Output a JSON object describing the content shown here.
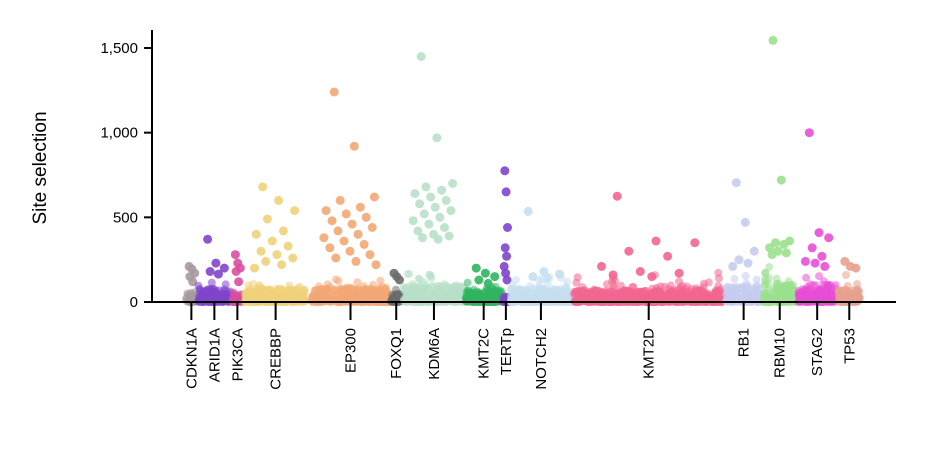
{
  "chart_data": {
    "type": "scatter",
    "ylabel": "Site selection",
    "ylim": [
      0,
      1600
    ],
    "yticks": [
      0,
      500,
      1000,
      1500
    ],
    "ytick_labels": [
      "0",
      "500",
      "1,000",
      "1,500"
    ],
    "grid": false,
    "categories": [
      {
        "name": "CDKN1A",
        "color": "#a79a9e",
        "range": [
          0.15,
          0.35
        ],
        "bulk": 60,
        "peak": 150,
        "outliers": [
          210,
          195,
          170,
          150,
          120
        ]
      },
      {
        "name": "ARID1A",
        "color": "#7f45cc",
        "range": [
          0.38,
          0.98
        ],
        "bulk": 80,
        "peak": 150,
        "outliers": [
          370,
          230,
          200,
          180,
          165
        ]
      },
      {
        "name": "PIK3CA",
        "color": "#d94fa0",
        "range": [
          1.02,
          1.2
        ],
        "bulk": 60,
        "peak": 120,
        "outliers": [
          280,
          230,
          200,
          180,
          120
        ]
      },
      {
        "name": "CREBBP",
        "color": "#eed27a",
        "range": [
          1.25,
          2.4
        ],
        "bulk": 80,
        "peak": 140,
        "outliers": [
          680,
          600,
          540,
          490,
          420,
          400,
          360,
          330,
          300,
          280,
          260,
          240,
          220,
          200
        ]
      },
      {
        "name": "EP300",
        "color": "#f2a874",
        "range": [
          2.5,
          3.95
        ],
        "bulk": 80,
        "peak": 150,
        "outliers": [
          1240,
          920,
          620,
          600,
          560,
          540,
          520,
          500,
          480,
          460,
          440,
          420,
          400,
          380,
          360,
          340,
          320,
          300,
          280,
          260,
          240,
          220
        ]
      },
      {
        "name": "FOXQ1",
        "color": "#6b6b6b",
        "range": [
          3.98,
          4.18
        ],
        "bulk": 50,
        "peak": 120,
        "outliers": [
          170,
          150,
          130
        ]
      },
      {
        "name": "KDM6A",
        "color": "#b8e0c8",
        "range": [
          4.22,
          5.35
        ],
        "bulk": 100,
        "peak": 200,
        "outliers": [
          1450,
          970,
          700,
          680,
          660,
          640,
          620,
          600,
          580,
          560,
          540,
          520,
          500,
          480,
          460,
          440,
          420,
          400,
          390,
          380,
          370
        ]
      },
      {
        "name": "KMT2C",
        "color": "#2fb561",
        "range": [
          5.38,
          6.05
        ],
        "bulk": 70,
        "peak": 140,
        "outliers": [
          200,
          170,
          150,
          130,
          110
        ]
      },
      {
        "name": "TERTp",
        "color": "#7f45cc",
        "range": [
          6.08,
          6.18
        ],
        "bulk": 40,
        "peak": 100,
        "outliers": [
          775,
          650,
          440,
          320,
          270,
          210,
          170,
          130
        ]
      },
      {
        "name": "NOTCH2",
        "color": "#c5dff0",
        "range": [
          6.22,
          7.35
        ],
        "bulk": 80,
        "peak": 180,
        "outliers": [
          535,
          180,
          165,
          150
        ]
      },
      {
        "name": "KMT2D",
        "color": "#f26690",
        "range": [
          7.4,
          10.2
        ],
        "bulk": 70,
        "peak": 180,
        "outliers": [
          625,
          360,
          350,
          300,
          270,
          210,
          180,
          170,
          160,
          150
        ]
      },
      {
        "name": "RB1",
        "color": "#c7ccf0",
        "range": [
          10.25,
          10.9
        ],
        "bulk": 90,
        "peak": 200,
        "outliers": [
          705,
          470,
          300,
          250,
          230,
          210
        ]
      },
      {
        "name": "RBM10",
        "color": "#9be08e",
        "range": [
          10.95,
          11.55
        ],
        "bulk": 110,
        "peak": 250,
        "outliers": [
          1545,
          720,
          360,
          350,
          340,
          320,
          300,
          290,
          280
        ]
      },
      {
        "name": "STAG2",
        "color": "#e84fd6",
        "range": [
          11.6,
          12.3
        ],
        "bulk": 80,
        "peak": 170,
        "outliers": [
          1000,
          410,
          380,
          320,
          270,
          240,
          230,
          210
        ]
      },
      {
        "name": "TP53",
        "color": "#e8a08e",
        "range": [
          12.35,
          12.75
        ],
        "bulk": 80,
        "peak": 170,
        "outliers": [
          240,
          210,
          200
        ]
      }
    ]
  }
}
